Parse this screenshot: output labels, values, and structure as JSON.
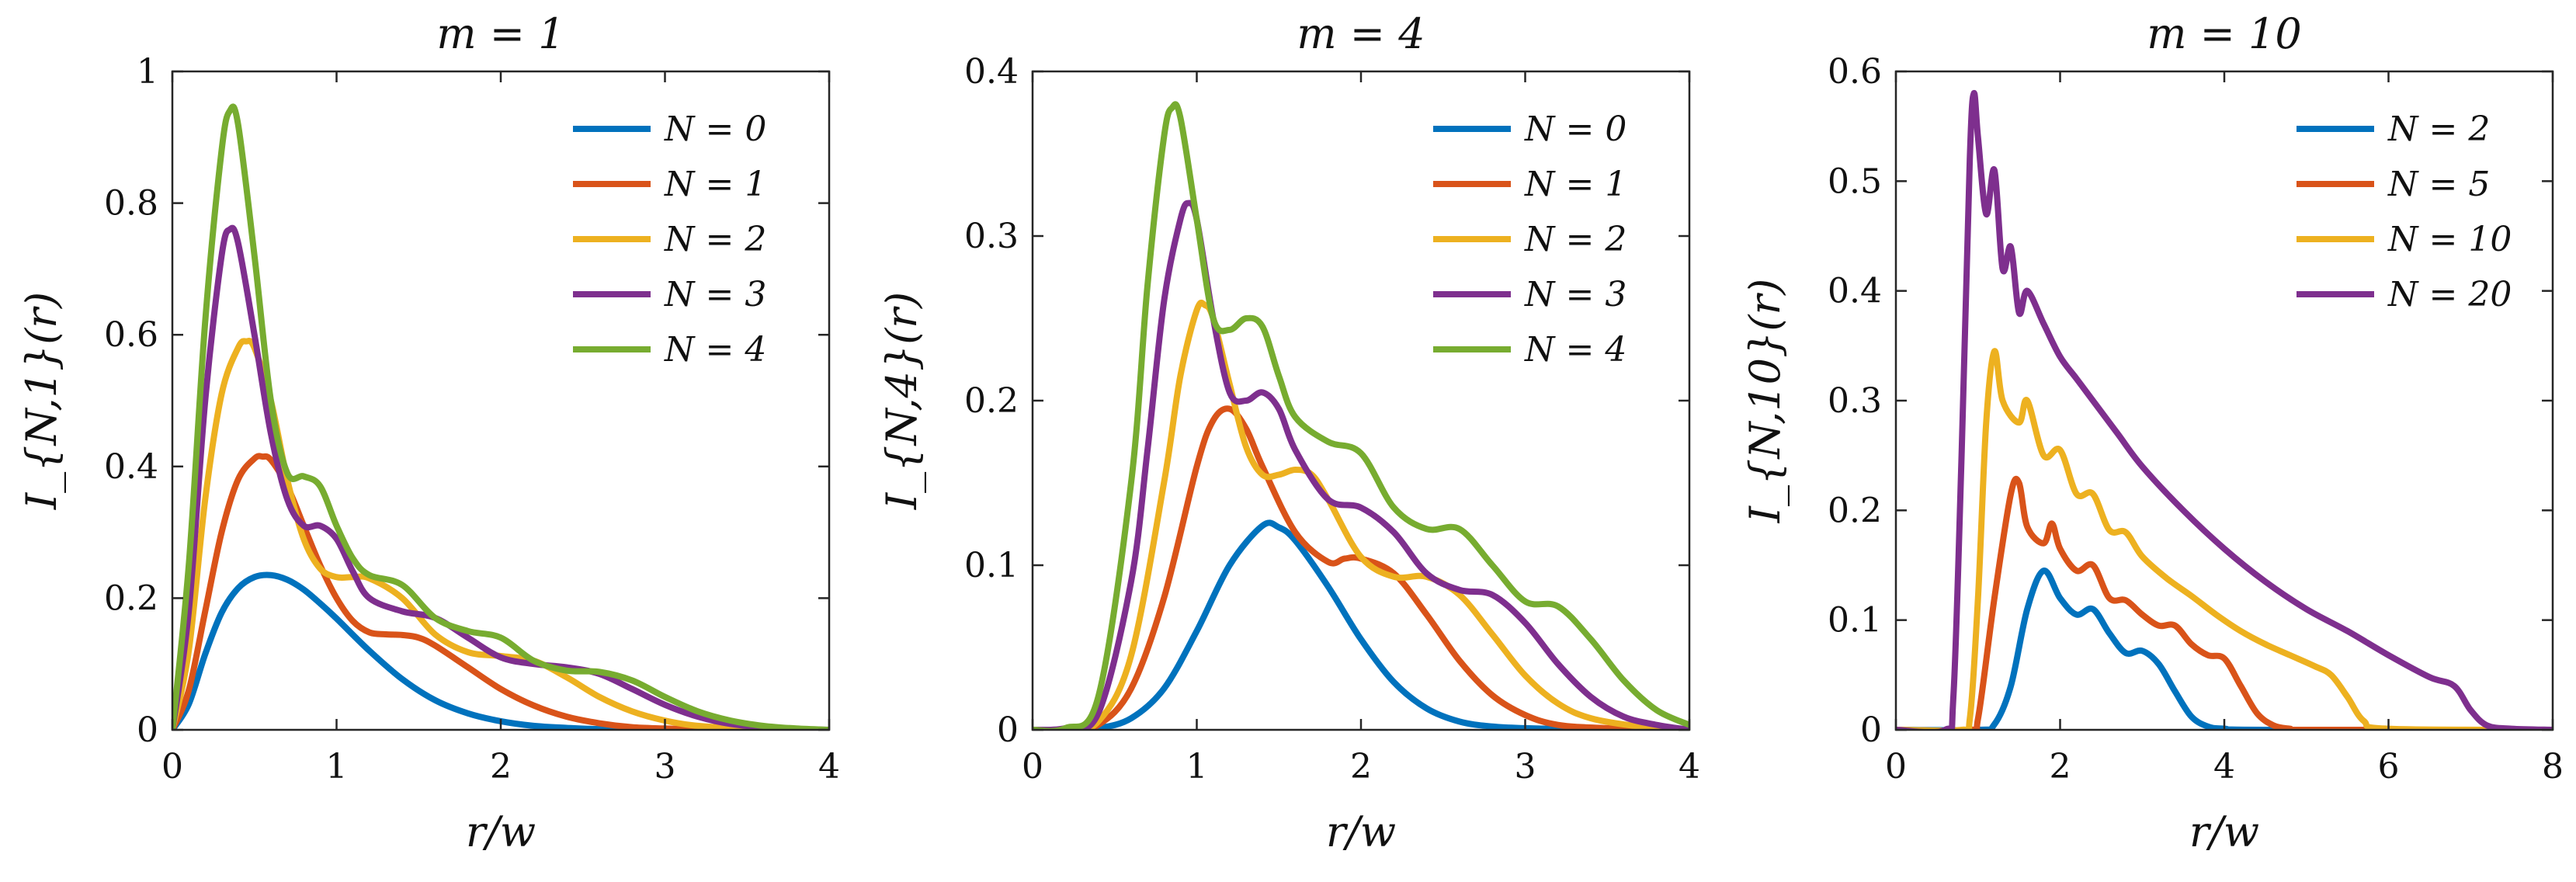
{
  "colors": {
    "blue": "#0072BD",
    "orange": "#D95319",
    "yellow": "#EDB120",
    "purple": "#7E2F8E",
    "green": "#77AC30"
  },
  "chart_data": [
    {
      "type": "line",
      "title": "m = 1",
      "xlabel": "r/w",
      "ylabel": "I_{N,1}(r)",
      "xlim": [
        0,
        4
      ],
      "ylim": [
        0,
        1
      ],
      "xticks": [
        "0",
        "1",
        "2",
        "3",
        "4"
      ],
      "yticks": [
        "0",
        "0.2",
        "0.4",
        "0.6",
        "0.8",
        "1"
      ],
      "grid": false,
      "legend_position": "top-right",
      "series": [
        {
          "name": "N = 0",
          "color": "#0072BD",
          "x": [
            0,
            0.1,
            0.2,
            0.3,
            0.4,
            0.5,
            0.6,
            0.7,
            0.8,
            0.9,
            1.0,
            1.2,
            1.4,
            1.6,
            1.8,
            2.0,
            2.2,
            2.4,
            2.6,
            3.0,
            3.5,
            4.0
          ],
          "y": [
            0,
            0.039,
            0.115,
            0.178,
            0.215,
            0.232,
            0.235,
            0.228,
            0.213,
            0.192,
            0.169,
            0.12,
            0.077,
            0.045,
            0.025,
            0.013,
            0.006,
            0.003,
            0.001,
            0,
            0,
            0
          ]
        },
        {
          "name": "N = 1",
          "color": "#D95319",
          "x": [
            0,
            0.1,
            0.2,
            0.3,
            0.4,
            0.5,
            0.55,
            0.6,
            0.7,
            0.8,
            0.9,
            1.0,
            1.1,
            1.2,
            1.3,
            1.4,
            1.5,
            1.6,
            1.8,
            2.0,
            2.2,
            2.4,
            2.6,
            2.8,
            3.0,
            3.3,
            4.0
          ],
          "y": [
            0,
            0.06,
            0.18,
            0.3,
            0.38,
            0.412,
            0.415,
            0.41,
            0.37,
            0.31,
            0.25,
            0.2,
            0.165,
            0.148,
            0.145,
            0.144,
            0.14,
            0.128,
            0.095,
            0.062,
            0.037,
            0.02,
            0.01,
            0.004,
            0.002,
            0,
            0
          ]
        },
        {
          "name": "N = 2",
          "color": "#EDB120",
          "x": [
            0,
            0.1,
            0.2,
            0.3,
            0.4,
            0.45,
            0.5,
            0.6,
            0.7,
            0.8,
            0.9,
            1.0,
            1.1,
            1.2,
            1.4,
            1.6,
            1.8,
            2.0,
            2.2,
            2.4,
            2.6,
            2.8,
            3.0,
            3.2,
            3.5,
            4.0
          ],
          "y": [
            0,
            0.12,
            0.35,
            0.51,
            0.58,
            0.59,
            0.58,
            0.5,
            0.38,
            0.29,
            0.245,
            0.232,
            0.232,
            0.23,
            0.2,
            0.145,
            0.118,
            0.112,
            0.105,
            0.08,
            0.05,
            0.028,
            0.014,
            0.006,
            0.002,
            0
          ]
        },
        {
          "name": "N = 3",
          "color": "#7E2F8E",
          "x": [
            0,
            0.1,
            0.2,
            0.3,
            0.35,
            0.4,
            0.5,
            0.6,
            0.7,
            0.8,
            0.9,
            1.0,
            1.1,
            1.2,
            1.4,
            1.6,
            1.8,
            2.0,
            2.2,
            2.4,
            2.6,
            2.8,
            3.0,
            3.2,
            3.4,
            3.7,
            4.0
          ],
          "y": [
            0,
            0.18,
            0.5,
            0.72,
            0.76,
            0.74,
            0.6,
            0.45,
            0.35,
            0.31,
            0.31,
            0.29,
            0.24,
            0.2,
            0.18,
            0.17,
            0.14,
            0.11,
            0.1,
            0.095,
            0.085,
            0.062,
            0.038,
            0.02,
            0.009,
            0.002,
            0
          ]
        },
        {
          "name": "N = 4",
          "color": "#77AC30",
          "x": [
            0,
            0.1,
            0.2,
            0.3,
            0.35,
            0.4,
            0.5,
            0.6,
            0.7,
            0.8,
            0.9,
            1.0,
            1.1,
            1.2,
            1.4,
            1.6,
            1.8,
            2.0,
            2.2,
            2.4,
            2.6,
            2.8,
            3.0,
            3.2,
            3.4,
            3.6,
            3.8,
            4.0
          ],
          "y": [
            0,
            0.25,
            0.62,
            0.88,
            0.94,
            0.92,
            0.72,
            0.5,
            0.39,
            0.385,
            0.37,
            0.31,
            0.26,
            0.235,
            0.22,
            0.17,
            0.15,
            0.14,
            0.105,
            0.09,
            0.088,
            0.075,
            0.05,
            0.028,
            0.014,
            0.006,
            0.002,
            0
          ]
        }
      ]
    },
    {
      "type": "line",
      "title": "m = 4",
      "xlabel": "r/w",
      "ylabel": "I_{N,4}(r)",
      "xlim": [
        0,
        4
      ],
      "ylim": [
        0,
        0.4
      ],
      "xticks": [
        "0",
        "1",
        "2",
        "3",
        "4"
      ],
      "yticks": [
        "0",
        "0.1",
        "0.2",
        "0.3",
        "0.4"
      ],
      "grid": false,
      "legend_position": "top-right",
      "series": [
        {
          "name": "N = 0",
          "color": "#0072BD",
          "x": [
            0,
            0.2,
            0.4,
            0.6,
            0.8,
            1.0,
            1.2,
            1.4,
            1.5,
            1.6,
            1.8,
            2.0,
            2.2,
            2.4,
            2.6,
            2.8,
            3.0,
            3.5,
            4.0
          ],
          "y": [
            0,
            0,
            0.001,
            0.007,
            0.025,
            0.06,
            0.1,
            0.124,
            0.123,
            0.115,
            0.087,
            0.055,
            0.029,
            0.013,
            0.005,
            0.002,
            0.001,
            0,
            0
          ]
        },
        {
          "name": "N = 1",
          "color": "#D95319",
          "x": [
            0,
            0.2,
            0.4,
            0.6,
            0.8,
            1.0,
            1.1,
            1.2,
            1.3,
            1.4,
            1.6,
            1.8,
            1.9,
            2.0,
            2.2,
            2.4,
            2.6,
            2.8,
            3.0,
            3.2,
            3.5,
            4.0
          ],
          "y": [
            0,
            0,
            0.003,
            0.025,
            0.08,
            0.16,
            0.188,
            0.195,
            0.183,
            0.16,
            0.12,
            0.102,
            0.104,
            0.104,
            0.095,
            0.07,
            0.042,
            0.021,
            0.009,
            0.003,
            0.001,
            0
          ]
        },
        {
          "name": "N = 2",
          "color": "#EDB120",
          "x": [
            0,
            0.2,
            0.4,
            0.6,
            0.8,
            0.9,
            1.0,
            1.05,
            1.1,
            1.2,
            1.3,
            1.4,
            1.5,
            1.6,
            1.7,
            1.8,
            2.0,
            2.2,
            2.4,
            2.6,
            2.8,
            3.0,
            3.2,
            3.4,
            3.7,
            4.0
          ],
          "y": [
            0,
            0,
            0.005,
            0.045,
            0.15,
            0.215,
            0.255,
            0.258,
            0.25,
            0.21,
            0.172,
            0.155,
            0.155,
            0.158,
            0.155,
            0.14,
            0.105,
            0.093,
            0.093,
            0.082,
            0.058,
            0.033,
            0.016,
            0.007,
            0.002,
            0
          ]
        },
        {
          "name": "N = 3",
          "color": "#7E2F8E",
          "x": [
            0,
            0.2,
            0.4,
            0.6,
            0.7,
            0.8,
            0.9,
            0.95,
            1.0,
            1.1,
            1.2,
            1.3,
            1.4,
            1.5,
            1.6,
            1.8,
            2.0,
            2.2,
            2.4,
            2.6,
            2.8,
            3.0,
            3.2,
            3.4,
            3.6,
            3.8,
            4.0
          ],
          "y": [
            0,
            0.001,
            0.01,
            0.09,
            0.17,
            0.26,
            0.31,
            0.32,
            0.31,
            0.25,
            0.205,
            0.2,
            0.205,
            0.195,
            0.17,
            0.14,
            0.135,
            0.12,
            0.095,
            0.085,
            0.082,
            0.065,
            0.04,
            0.02,
            0.008,
            0.003,
            0
          ]
        },
        {
          "name": "N = 4",
          "color": "#77AC30",
          "x": [
            0,
            0.2,
            0.4,
            0.6,
            0.7,
            0.8,
            0.85,
            0.9,
            1.0,
            1.1,
            1.2,
            1.3,
            1.4,
            1.5,
            1.6,
            1.8,
            2.0,
            2.2,
            2.4,
            2.6,
            2.8,
            3.0,
            3.2,
            3.4,
            3.6,
            3.8,
            4.0
          ],
          "y": [
            0,
            0.001,
            0.02,
            0.15,
            0.27,
            0.36,
            0.378,
            0.372,
            0.31,
            0.25,
            0.243,
            0.25,
            0.245,
            0.215,
            0.19,
            0.175,
            0.168,
            0.135,
            0.122,
            0.122,
            0.1,
            0.078,
            0.075,
            0.055,
            0.03,
            0.012,
            0.003
          ]
        }
      ]
    },
    {
      "type": "line",
      "title": "m = 10",
      "xlabel": "r/w",
      "ylabel": "I_{N,10}(r)",
      "xlim": [
        0,
        8
      ],
      "ylim": [
        0,
        0.6
      ],
      "xticks": [
        "0",
        "2",
        "4",
        "6",
        "8"
      ],
      "yticks": [
        "0",
        "0.1",
        "0.2",
        "0.3",
        "0.4",
        "0.5",
        "0.6"
      ],
      "grid": false,
      "legend_position": "top-right",
      "series": [
        {
          "name": "N = 2",
          "color": "#0072BD",
          "x": [
            0,
            1.0,
            1.2,
            1.4,
            1.6,
            1.8,
            2.0,
            2.2,
            2.4,
            2.6,
            2.8,
            3.0,
            3.2,
            3.4,
            3.6,
            3.8,
            4.0,
            4.5,
            8.0
          ],
          "y": [
            0,
            0,
            0.005,
            0.04,
            0.11,
            0.145,
            0.12,
            0.105,
            0.11,
            0.088,
            0.07,
            0.072,
            0.06,
            0.035,
            0.012,
            0.003,
            0.001,
            0,
            0
          ]
        },
        {
          "name": "N = 5",
          "color": "#D95319",
          "x": [
            0,
            0.9,
            1.0,
            1.2,
            1.4,
            1.5,
            1.6,
            1.8,
            1.9,
            2.0,
            2.2,
            2.4,
            2.6,
            2.8,
            3.0,
            3.2,
            3.4,
            3.6,
            3.8,
            4.0,
            4.2,
            4.4,
            4.6,
            4.8,
            5.0,
            8.0
          ],
          "y": [
            0,
            0,
            0.01,
            0.12,
            0.215,
            0.225,
            0.185,
            0.17,
            0.188,
            0.165,
            0.145,
            0.15,
            0.12,
            0.118,
            0.105,
            0.095,
            0.095,
            0.078,
            0.068,
            0.065,
            0.04,
            0.015,
            0.004,
            0.001,
            0,
            0
          ]
        },
        {
          "name": "N = 10",
          "color": "#EDB120",
          "x": [
            0,
            0.8,
            0.9,
            1.0,
            1.1,
            1.2,
            1.3,
            1.5,
            1.6,
            1.8,
            2.0,
            2.2,
            2.4,
            2.6,
            2.8,
            3.0,
            3.3,
            3.6,
            3.9,
            4.2,
            4.5,
            4.8,
            5.1,
            5.3,
            5.5,
            5.7,
            6.0,
            8.0
          ],
          "y": [
            0,
            0,
            0.01,
            0.12,
            0.28,
            0.345,
            0.3,
            0.28,
            0.3,
            0.25,
            0.255,
            0.215,
            0.215,
            0.182,
            0.18,
            0.158,
            0.138,
            0.122,
            0.105,
            0.09,
            0.078,
            0.068,
            0.058,
            0.05,
            0.03,
            0.008,
            0.001,
            0
          ]
        },
        {
          "name": "N = 20",
          "color": "#7E2F8E",
          "x": [
            0,
            0.6,
            0.7,
            0.8,
            0.9,
            0.95,
            1.0,
            1.1,
            1.2,
            1.3,
            1.4,
            1.5,
            1.6,
            1.8,
            2.0,
            2.2,
            2.4,
            2.7,
            3.0,
            3.5,
            4.0,
            4.5,
            5.0,
            5.5,
            6.0,
            6.5,
            6.8,
            7.0,
            7.2,
            7.5,
            8.0
          ],
          "y": [
            0,
            0,
            0.03,
            0.25,
            0.52,
            0.58,
            0.54,
            0.47,
            0.51,
            0.42,
            0.44,
            0.38,
            0.4,
            0.37,
            0.34,
            0.32,
            0.3,
            0.27,
            0.24,
            0.2,
            0.165,
            0.135,
            0.11,
            0.09,
            0.068,
            0.048,
            0.04,
            0.018,
            0.004,
            0.001,
            0
          ]
        }
      ]
    }
  ]
}
